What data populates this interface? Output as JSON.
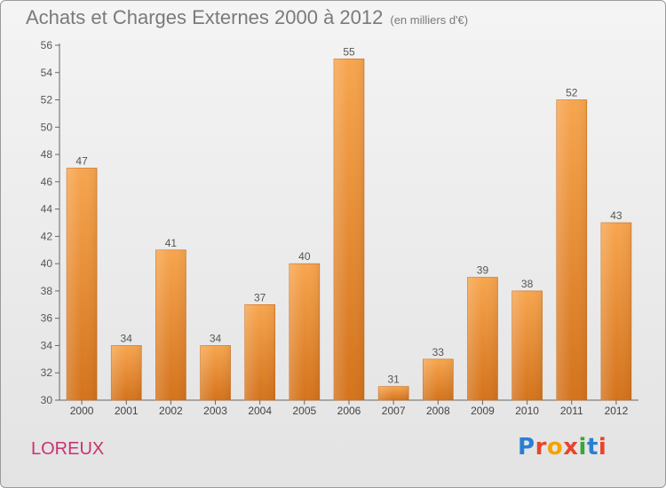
{
  "header": {
    "title": "Achats et Charges Externes 2000 à 2012",
    "subtitle": "(en milliers d'€)"
  },
  "footer": {
    "place": "LOREUX",
    "brand": "Proxiti",
    "brand_colors": [
      "#2a7fd4",
      "#e8452c",
      "#f5a300",
      "#e8452c",
      "#3aa635",
      "#2a7fd4",
      "#e8452c"
    ]
  },
  "chart_data": {
    "type": "bar",
    "categories": [
      "2000",
      "2001",
      "2002",
      "2003",
      "2004",
      "2005",
      "2006",
      "2007",
      "2008",
      "2009",
      "2010",
      "2011",
      "2012"
    ],
    "values": [
      47,
      34,
      41,
      34,
      37,
      40,
      55,
      31,
      33,
      39,
      38,
      52,
      43
    ],
    "ylim": [
      30,
      56
    ],
    "yticks": [
      30,
      32,
      34,
      36,
      38,
      40,
      42,
      44,
      46,
      48,
      50,
      52,
      54,
      56
    ],
    "grid": false,
    "bar_color_top": "#f7a54e",
    "bar_color_bottom": "#d4731c",
    "label_color": "#555555"
  }
}
